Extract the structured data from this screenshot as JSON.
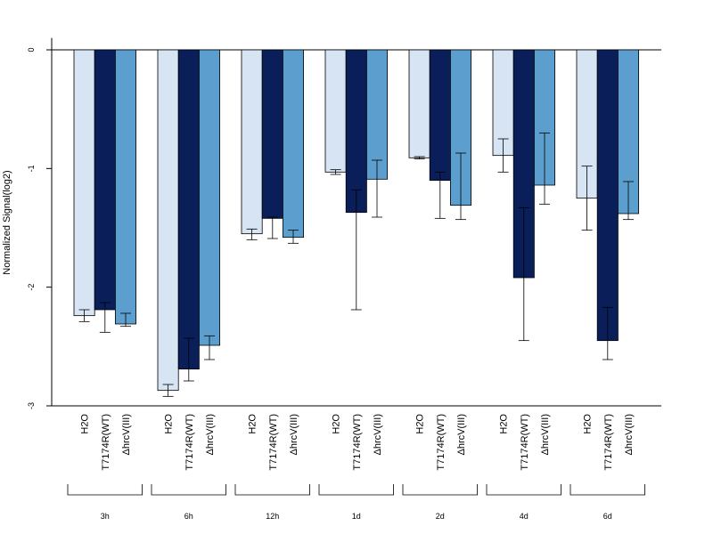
{
  "chart_data": {
    "type": "bar",
    "title": "",
    "xlabel": "",
    "ylabel": "Normalized Signal(log2)",
    "ylim": [
      -3,
      0.1
    ],
    "yticks": [
      0,
      -1,
      -2,
      -3
    ],
    "groups": [
      "3h",
      "6h",
      "12h",
      "1d",
      "2d",
      "4d",
      "6d"
    ],
    "bar_labels": [
      "H2O",
      "T7174R(WT)",
      "ΔhrcV(III)"
    ],
    "colors": [
      "#d6e4f3",
      "#0a1f5a",
      "#5c9fcf"
    ],
    "error_bars": true,
    "legend": "none",
    "grid": false,
    "series": [
      {
        "values": [
          -2.24,
          -2.87,
          -1.55,
          -1.03,
          -0.91,
          -0.89,
          -1.25
        ],
        "err_low": [
          -2.29,
          -2.92,
          -1.6,
          -1.05,
          -0.92,
          -1.03,
          -1.52
        ],
        "err_high": [
          -2.19,
          -2.82,
          -1.51,
          -1.01,
          -0.9,
          -0.75,
          -0.98
        ]
      },
      {
        "values": [
          -2.19,
          -2.69,
          -1.42,
          -1.37,
          -1.1,
          -1.92,
          -2.45
        ],
        "err_low": [
          -2.38,
          -2.79,
          -1.59,
          -2.19,
          -1.42,
          -2.45,
          -2.61
        ],
        "err_high": [
          -2.13,
          -2.43,
          -1.41,
          -1.18,
          -1.03,
          -1.33,
          -2.17
        ]
      },
      {
        "values": [
          -2.31,
          -2.49,
          -1.58,
          -1.09,
          -1.31,
          -1.14,
          -1.38
        ],
        "err_low": [
          -2.33,
          -2.61,
          -1.63,
          -1.41,
          -1.43,
          -1.3,
          -1.43
        ],
        "err_high": [
          -2.22,
          -2.41,
          -1.52,
          -0.93,
          -0.87,
          -0.7,
          -1.11
        ]
      }
    ]
  }
}
